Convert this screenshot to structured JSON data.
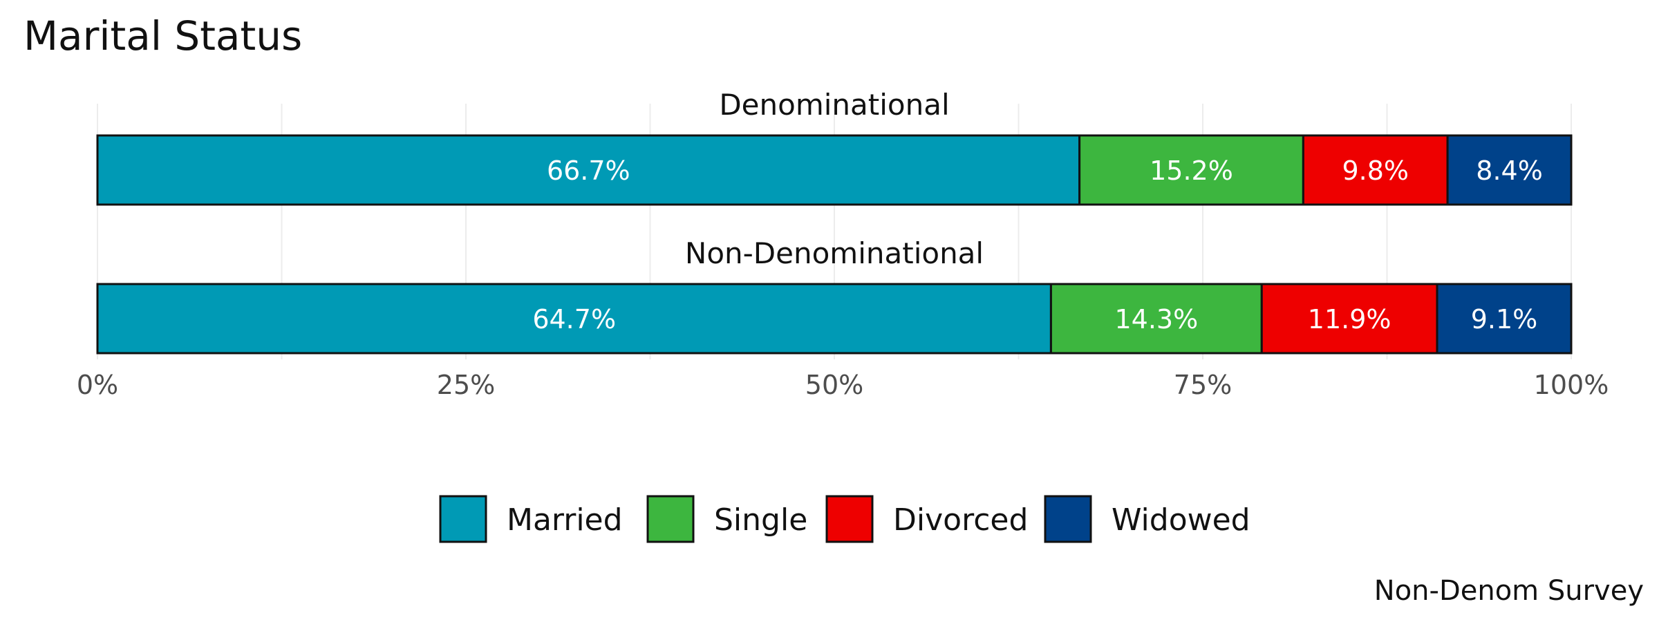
{
  "chart_data": {
    "type": "bar",
    "orientation": "horizontal",
    "stacked": "percent",
    "title": "Marital Status",
    "caption": "Non-Denom Survey",
    "facets": [
      "Denominational",
      "Non-Denominational"
    ],
    "series": [
      {
        "name": "Married",
        "color": "#009ab5",
        "values": [
          66.7,
          64.7
        ],
        "labels": [
          "66.7%",
          "64.7%"
        ]
      },
      {
        "name": "Single",
        "color": "#3db63f",
        "values": [
          15.2,
          14.3
        ],
        "labels": [
          "15.2%",
          "14.3%"
        ]
      },
      {
        "name": "Divorced",
        "color": "#ee0000",
        "values": [
          9.8,
          11.9
        ],
        "labels": [
          "9.8%",
          "11.9%"
        ]
      },
      {
        "name": "Widowed",
        "color": "#00428a",
        "values": [
          8.4,
          9.1
        ],
        "labels": [
          "8.4%",
          "9.1%"
        ]
      }
    ],
    "x_ticks": [
      "0%",
      "25%",
      "50%",
      "75%",
      "100%"
    ],
    "xlim": [
      0,
      100
    ],
    "legend_position": "bottom",
    "grid": true
  }
}
